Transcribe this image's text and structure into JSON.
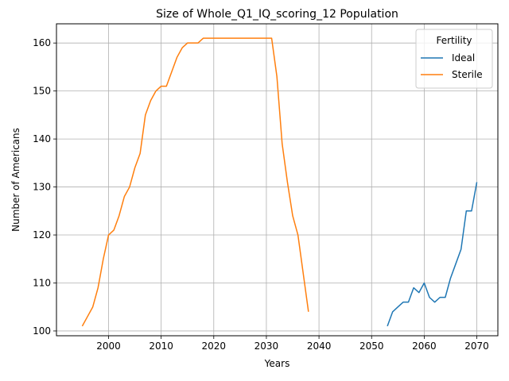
{
  "chart_data": {
    "type": "line",
    "title": "Size of Whole_Q1_IQ_scoring_12 Population",
    "xlabel": "Years",
    "ylabel": "Number of Americans",
    "xlim": [
      1990.1,
      2074.0
    ],
    "ylim": [
      99.0,
      164.0
    ],
    "xticks": [
      2000,
      2010,
      2020,
      2030,
      2040,
      2050,
      2060,
      2070
    ],
    "yticks": [
      100,
      110,
      120,
      130,
      140,
      150,
      160
    ],
    "grid": true,
    "legend": {
      "title": "Fertility",
      "placement": "upper right"
    },
    "series": [
      {
        "name": "Ideal",
        "color": "#1f77b4",
        "x": [
          2053,
          2054,
          2055,
          2056,
          2057,
          2058,
          2059,
          2060,
          2061,
          2062,
          2063,
          2064,
          2065,
          2066,
          2067,
          2068,
          2069,
          2070
        ],
        "y": [
          101,
          104,
          105,
          106,
          106,
          109,
          108,
          110,
          107,
          106,
          107,
          107,
          111,
          114,
          117,
          125,
          125,
          131
        ]
      },
      {
        "name": "Sterile",
        "color": "#ff7f0e",
        "x": [
          1995,
          1996,
          1997,
          1998,
          1999,
          2000,
          2001,
          2002,
          2003,
          2004,
          2005,
          2006,
          2007,
          2008,
          2009,
          2010,
          2011,
          2012,
          2013,
          2014,
          2015,
          2016,
          2017,
          2018,
          2019,
          2020,
          2021,
          2022,
          2023,
          2024,
          2025,
          2026,
          2027,
          2028,
          2029,
          2030,
          2031,
          2032,
          2033,
          2034,
          2035,
          2036,
          2037,
          2038
        ],
        "y": [
          101,
          103,
          105,
          109,
          115,
          120,
          121,
          124,
          128,
          130,
          134,
          137,
          145,
          148,
          150,
          151,
          151,
          154,
          157,
          159,
          160,
          160,
          160,
          161,
          161,
          161,
          161,
          161,
          161,
          161,
          161,
          161,
          161,
          161,
          161,
          161,
          161,
          153,
          139,
          131,
          124,
          120,
          112,
          104
        ]
      }
    ]
  }
}
